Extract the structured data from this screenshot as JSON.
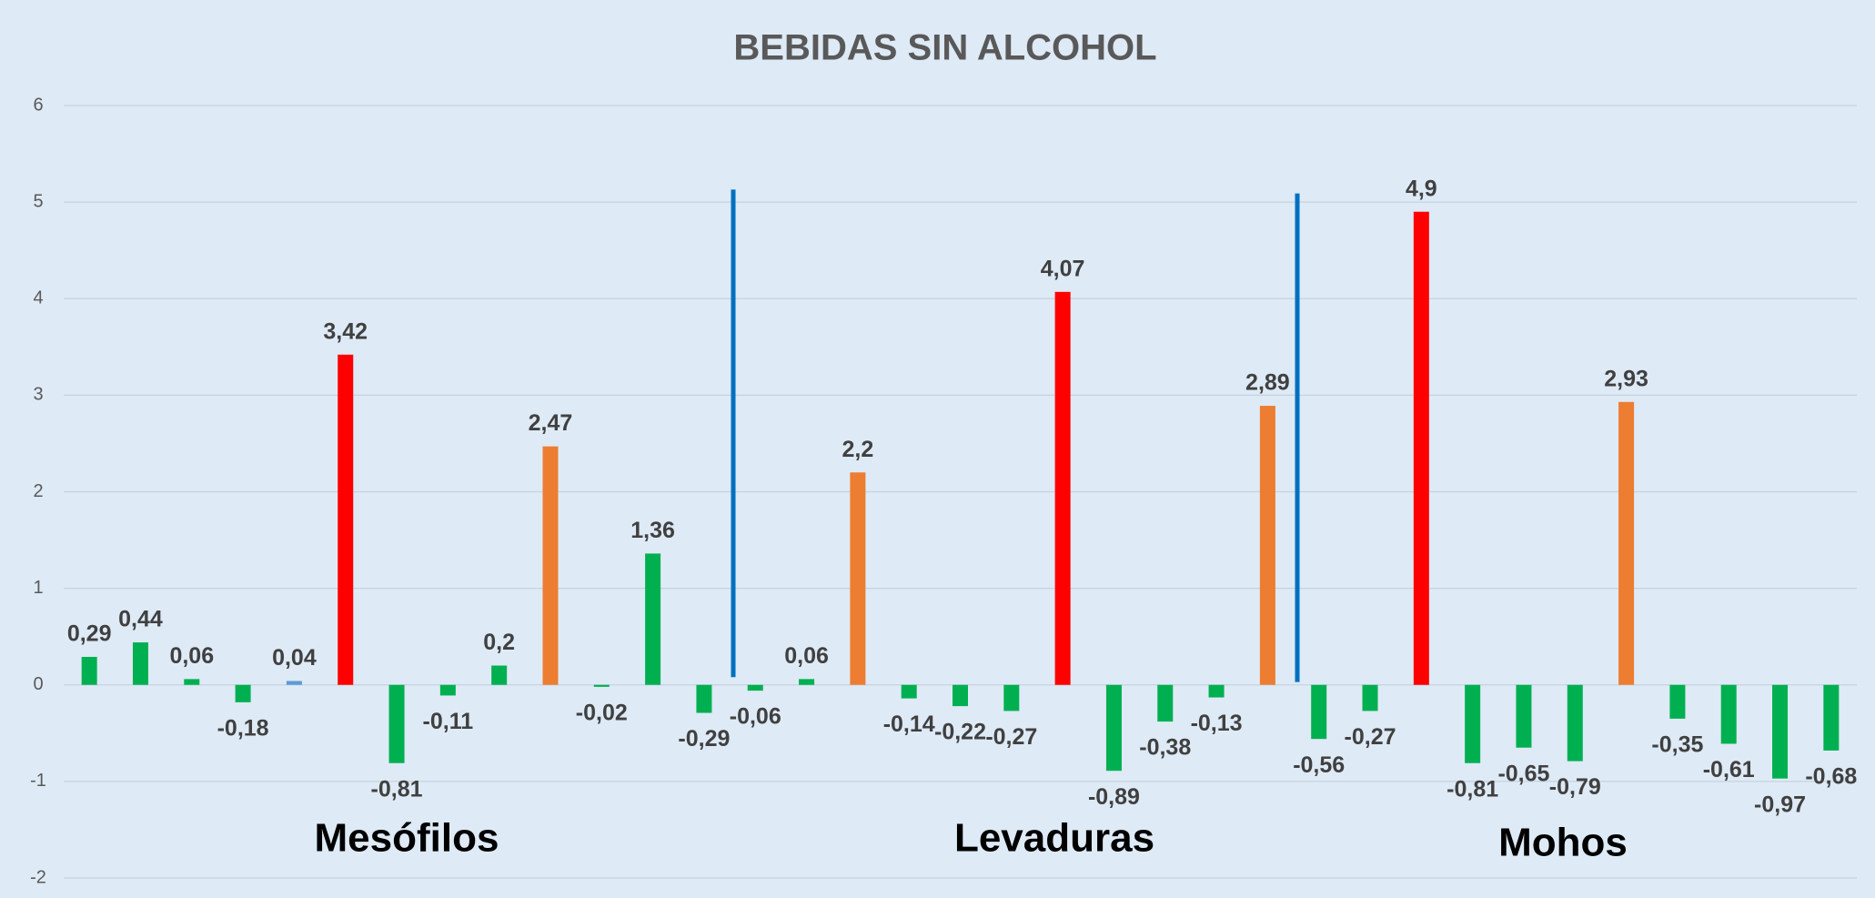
{
  "chart_data": {
    "type": "bar",
    "title": "BEBIDAS SIN ALCOHOL",
    "categories": [
      null,
      null,
      null,
      null,
      null,
      null,
      null,
      null,
      null,
      null,
      null,
      null,
      null,
      null,
      null,
      null,
      null,
      null,
      null,
      null,
      null,
      null,
      null,
      null,
      null,
      null,
      null,
      null,
      null,
      null,
      null,
      null,
      null,
      null,
      null
    ],
    "values": [
      0.29,
      0.44,
      0.06,
      -0.18,
      0.04,
      3.42,
      -0.81,
      -0.11,
      0.2,
      2.47,
      -0.02,
      1.36,
      -0.29,
      -0.06,
      0.06,
      2.2,
      -0.14,
      -0.22,
      -0.27,
      4.07,
      -0.89,
      -0.38,
      -0.13,
      2.89,
      -0.56,
      -0.27,
      4.9,
      -0.81,
      -0.65,
      -0.79,
      2.93,
      -0.35,
      -0.61,
      -0.97,
      -0.68
    ],
    "value_labels": [
      "0,29",
      "0,44",
      "0,06",
      "-0,18",
      "0,04",
      "3,42",
      "-0,81",
      "-0,11",
      "0,2",
      "2,47",
      "-0,02",
      "1,36",
      "-0,29",
      "-0,06",
      "0,06",
      "2,2",
      "-0,14",
      "-0,22",
      "-0,27",
      "4,07",
      "-0,89",
      "-0,38",
      "-0,13",
      "2,89",
      "-0,56",
      "-0,27",
      "4,9",
      "-0,81",
      "-0,65",
      "-0,79",
      "2,93",
      "-0,35",
      "-0,61",
      "-0,97",
      "-0,68"
    ],
    "colors": [
      "#00b050",
      "#00b050",
      "#00b050",
      "#00b050",
      "#5b9bd5",
      "#ff0000",
      "#00b050",
      "#00b050",
      "#00b050",
      "#ed7d31",
      "#00b050",
      "#00b050",
      "#00b050",
      "#00b050",
      "#00b050",
      "#ed7d31",
      "#00b050",
      "#00b050",
      "#00b050",
      "#ff0000",
      "#00b050",
      "#00b050",
      "#00b050",
      "#ed7d31",
      "#00b050",
      "#00b050",
      "#ff0000",
      "#00b050",
      "#00b050",
      "#00b050",
      "#ed7d31",
      "#00b050",
      "#00b050",
      "#00b050",
      "#00b050"
    ],
    "ylim": [
      -2,
      6
    ],
    "yticks": [
      -2,
      -1,
      0,
      1,
      2,
      3,
      4,
      5,
      6
    ],
    "grid": true,
    "annotations": [
      "Mesófilos",
      "Levaduras",
      "Mohos"
    ]
  }
}
